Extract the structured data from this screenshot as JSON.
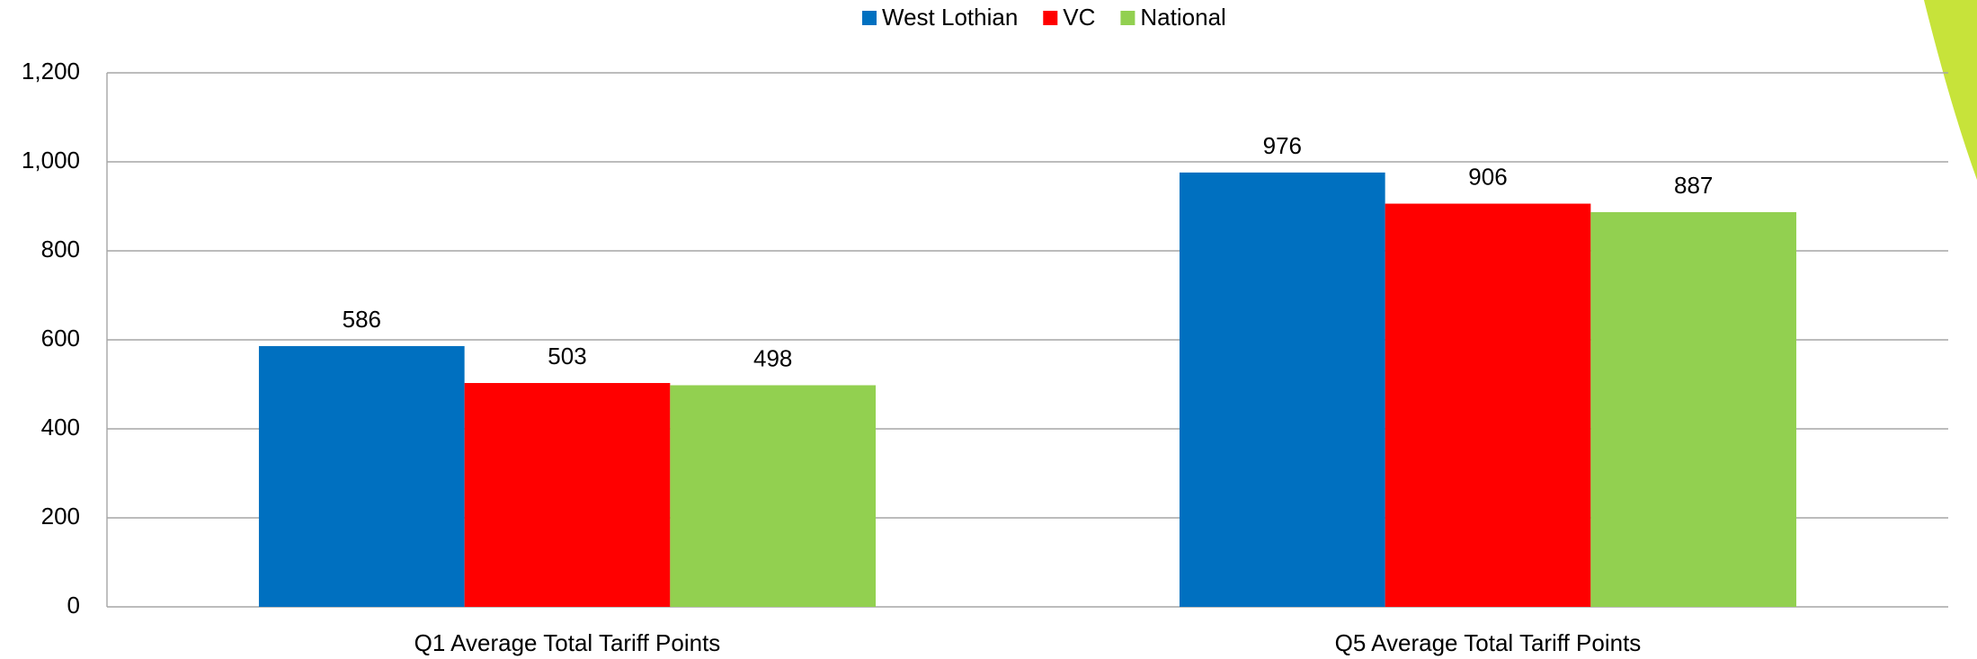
{
  "chart_data": {
    "type": "bar",
    "categories": [
      "Q1 Average Total Tariff Points",
      "Q5 Average Total Tariff Points"
    ],
    "series": [
      {
        "name": "West Lothian",
        "color": "#0070c0",
        "values": [
          586,
          976
        ]
      },
      {
        "name": "VC",
        "color": "#ff0000",
        "values": [
          503,
          906
        ]
      },
      {
        "name": "National",
        "color": "#92d050",
        "values": [
          498,
          887
        ]
      }
    ],
    "ylim": [
      0,
      1200
    ],
    "yticks": [
      0,
      200,
      400,
      600,
      800,
      {
        "value": 1000,
        "label": "1,000"
      },
      {
        "value": 1200,
        "label": "1,200"
      }
    ],
    "grid": true,
    "legend": "top"
  }
}
